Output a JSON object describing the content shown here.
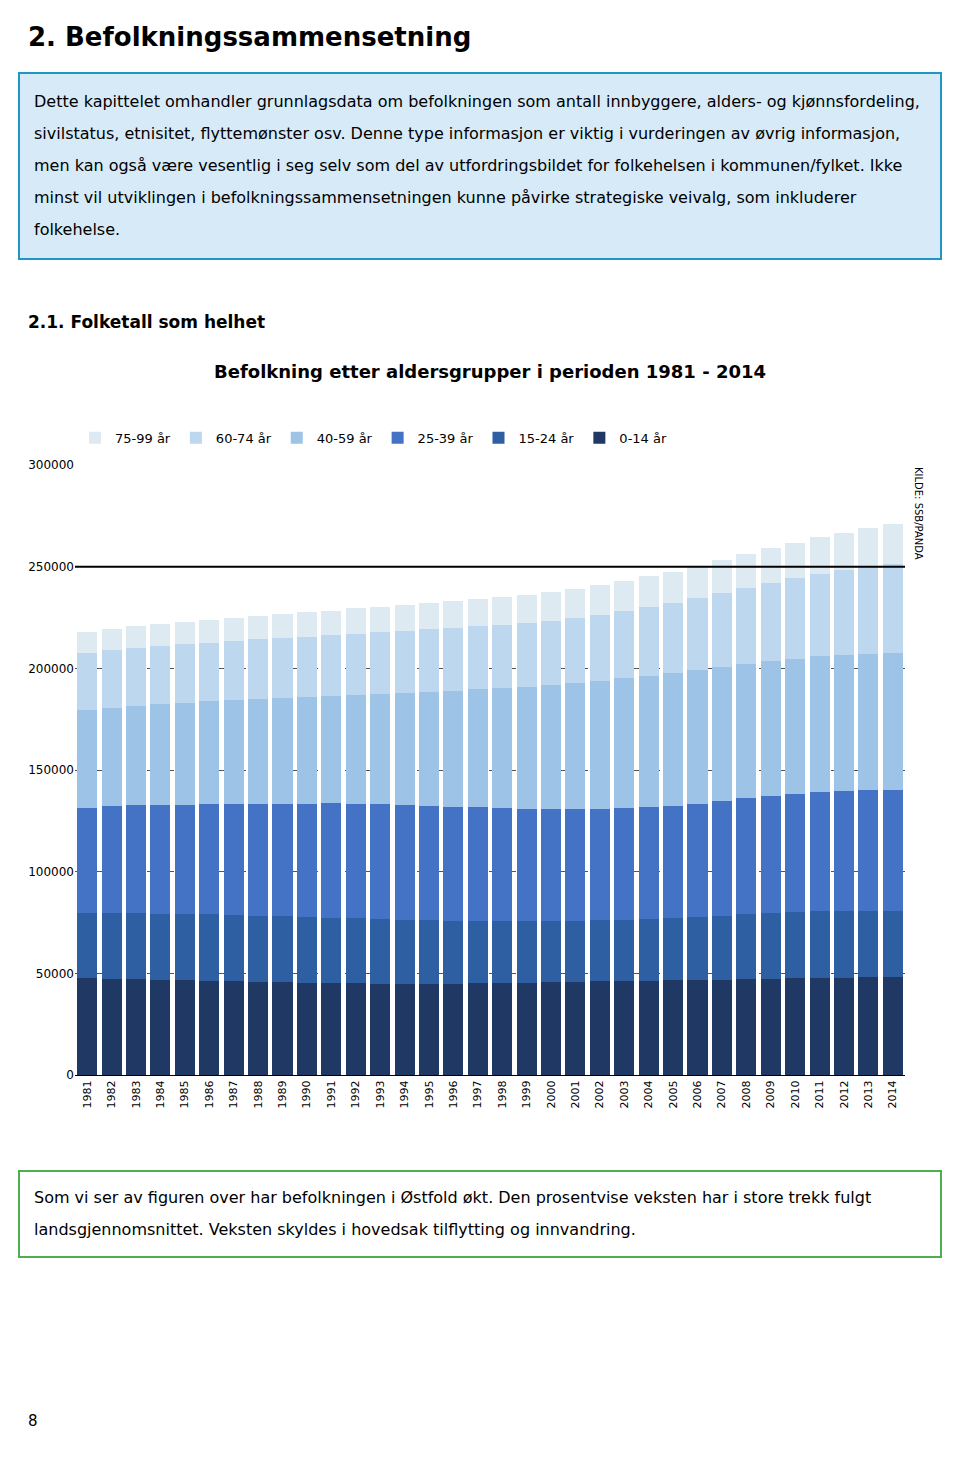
{
  "title": "2. Befolkningssammensetning",
  "intro_box": {
    "text": "Dette kapittelet omhandler grunnlagsdata om befolkningen som antall innbyggere, alders- og kjønnsfordeling, sivilstatus, etnisitet, flyttemønster osv. Denne type informasjon er viktig i vurderingen av øvrig informasjon, men kan også være vesentlig i seg selv som del av utfordringsbildet for folkehelsen i kommunen/fylket. Ikke minst vil utviklingen i befolkningssammensetningen kunne påvirke strategiske veivalg, som inkluderer folkehelse.",
    "color": "#d6eaf8",
    "border_color": "#2196c4"
  },
  "section_title": "2.1. Folketall som helhet",
  "footer_box": {
    "text": "Som vi ser av figuren over har befolkningen i Østfold økt. Den prosentvise veksten har i store trekk fulgt landsgjennomsnittet. Veksten skyldes i hovedsak tilflytting og innvandring.",
    "border_color": "#4caf50"
  },
  "page_number": "8",
  "chart_data": {
    "type": "bar",
    "stacked": true,
    "title": "Befolkning etter aldersgrupper i perioden 1981 - 2014",
    "source": "KILDE: SSB/PANDA",
    "categories": [
      "1981",
      "1982",
      "1983",
      "1984",
      "1985",
      "1986",
      "1987",
      "1988",
      "1989",
      "1990",
      "1991",
      "1992",
      "1993",
      "1994",
      "1995",
      "1996",
      "1997",
      "1998",
      "1999",
      "2000",
      "2001",
      "2002",
      "2003",
      "2004",
      "2005",
      "2006",
      "2007",
      "2008",
      "2009",
      "2010",
      "2011",
      "2012",
      "2013",
      "2014"
    ],
    "series": [
      {
        "name": "0-14 år",
        "color": "#1f3864",
        "values": [
          47500,
          47400,
          47200,
          46900,
          46600,
          46300,
          46000,
          45700,
          45500,
          45300,
          45200,
          45100,
          45000,
          44900,
          44900,
          45000,
          45100,
          45200,
          45400,
          45600,
          45800,
          46000,
          46100,
          46300,
          46500,
          46700,
          46900,
          47100,
          47300,
          47500,
          47700,
          47900,
          48000,
          48100
        ]
      },
      {
        "name": "15-24 år",
        "color": "#2e5fa3",
        "values": [
          32000,
          32200,
          32400,
          32500,
          32600,
          32700,
          32800,
          32700,
          32600,
          32400,
          32200,
          32000,
          31700,
          31400,
          31100,
          30800,
          30600,
          30400,
          30200,
          30100,
          30000,
          30100,
          30300,
          30500,
          30800,
          31100,
          31500,
          31900,
          32300,
          32600,
          32800,
          32900,
          32900,
          32800
        ]
      },
      {
        "name": "25-39 år",
        "color": "#4472c4",
        "values": [
          52000,
          52500,
          53000,
          53400,
          53800,
          54200,
          54600,
          55000,
          55400,
          55800,
          56200,
          56400,
          56500,
          56500,
          56400,
          56200,
          55900,
          55600,
          55300,
          55000,
          54800,
          54700,
          54700,
          54900,
          55200,
          55700,
          56300,
          57000,
          57700,
          58300,
          58800,
          59100,
          59200,
          59200
        ]
      },
      {
        "name": "40-59 år",
        "color": "#9dc3e6",
        "values": [
          48000,
          48500,
          49000,
          49500,
          50000,
          50500,
          51000,
          51400,
          51800,
          52200,
          52600,
          53400,
          54100,
          55100,
          56100,
          57100,
          58100,
          59100,
          60100,
          61100,
          62100,
          63100,
          64100,
          64600,
          65100,
          65600,
          65800,
          66000,
          66200,
          66400,
          66600,
          66800,
          67100,
          67600
        ]
      },
      {
        "name": "60-74 år",
        "color": "#bdd7ee",
        "values": [
          28000,
          28200,
          28400,
          28600,
          28800,
          29000,
          29200,
          29400,
          29600,
          29800,
          30000,
          30200,
          30400,
          30600,
          30700,
          30800,
          31000,
          31200,
          31400,
          31600,
          32000,
          32500,
          33000,
          33800,
          34500,
          35500,
          36500,
          37500,
          38500,
          39500,
          40500,
          41500,
          42500,
          43500
        ]
      },
      {
        "name": "75-99 år",
        "color": "#deeaf1",
        "values": [
          10500,
          10600,
          10700,
          10800,
          11000,
          11200,
          11400,
          11600,
          11800,
          12000,
          12200,
          12400,
          12600,
          12800,
          13000,
          13200,
          13400,
          13600,
          13800,
          14000,
          14300,
          14600,
          14900,
          15200,
          15500,
          15900,
          16300,
          16700,
          17100,
          17500,
          18000,
          18500,
          19100,
          19800
        ]
      }
    ],
    "ylim": [
      0,
      300000
    ],
    "yticks": [
      0,
      50000,
      100000,
      150000,
      200000,
      250000,
      300000
    ],
    "hline": 250000,
    "grid": true,
    "legend": "top"
  }
}
